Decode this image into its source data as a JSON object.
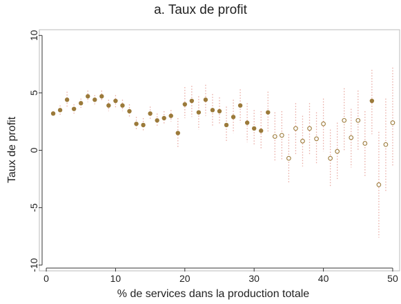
{
  "chart_data": {
    "type": "scatter",
    "title": "a. Taux de profit",
    "xlabel": "% de services dans la production totale",
    "ylabel": "Taux de profit",
    "xlim": [
      -1,
      51
    ],
    "ylim": [
      -10.5,
      10.5
    ],
    "xticks": [
      0,
      10,
      20,
      30,
      40,
      50
    ],
    "yticks": [
      -10,
      -5,
      0,
      5,
      10
    ],
    "grid": false,
    "colors": {
      "point": "#9b7a3a",
      "errorbar": "#e8a8a0",
      "axis": "#333333",
      "frame": "#bbbbbb"
    },
    "series": [
      {
        "style": "filled",
        "points": [
          {
            "x": 1,
            "y": 3.2,
            "lo": 3.0,
            "hi": 3.4
          },
          {
            "x": 2,
            "y": 3.5,
            "lo": 3.1,
            "hi": 3.9
          },
          {
            "x": 3,
            "y": 4.4,
            "lo": 3.7,
            "hi": 5.1
          },
          {
            "x": 4,
            "y": 3.6,
            "lo": 3.2,
            "hi": 4.0
          },
          {
            "x": 5,
            "y": 4.1,
            "lo": 3.7,
            "hi": 4.5
          },
          {
            "x": 6,
            "y": 4.7,
            "lo": 4.2,
            "hi": 5.2
          },
          {
            "x": 7,
            "y": 4.4,
            "lo": 4.0,
            "hi": 4.8
          },
          {
            "x": 8,
            "y": 4.7,
            "lo": 4.3,
            "hi": 5.2
          },
          {
            "x": 9,
            "y": 3.9,
            "lo": 3.4,
            "hi": 4.4
          },
          {
            "x": 10,
            "y": 4.3,
            "lo": 3.6,
            "hi": 4.8
          },
          {
            "x": 11,
            "y": 3.9,
            "lo": 3.4,
            "hi": 4.4
          },
          {
            "x": 12,
            "y": 3.4,
            "lo": 2.8,
            "hi": 4.0
          },
          {
            "x": 13,
            "y": 2.3,
            "lo": 1.7,
            "hi": 2.9
          },
          {
            "x": 14,
            "y": 2.2,
            "lo": 1.6,
            "hi": 2.8
          },
          {
            "x": 15,
            "y": 3.2,
            "lo": 2.6,
            "hi": 3.8
          },
          {
            "x": 16,
            "y": 2.6,
            "lo": 2.0,
            "hi": 3.2
          },
          {
            "x": 17,
            "y": 2.8,
            "lo": 2.2,
            "hi": 3.4
          },
          {
            "x": 18,
            "y": 3.0,
            "lo": 2.5,
            "hi": 3.5
          },
          {
            "x": 19,
            "y": 1.5,
            "lo": 0.2,
            "hi": 2.8
          },
          {
            "x": 20,
            "y": 4.0,
            "lo": 2.8,
            "hi": 5.5
          },
          {
            "x": 21,
            "y": 4.3,
            "lo": 2.9,
            "hi": 5.6
          },
          {
            "x": 22,
            "y": 3.3,
            "lo": 1.8,
            "hi": 4.7
          },
          {
            "x": 23,
            "y": 4.4,
            "lo": 3.0,
            "hi": 5.7
          },
          {
            "x": 24,
            "y": 3.5,
            "lo": 2.1,
            "hi": 4.9
          },
          {
            "x": 25,
            "y": 3.4,
            "lo": 2.2,
            "hi": 4.6
          },
          {
            "x": 26,
            "y": 2.2,
            "lo": 0.8,
            "hi": 3.8
          },
          {
            "x": 27,
            "y": 2.9,
            "lo": 1.5,
            "hi": 4.4
          },
          {
            "x": 28,
            "y": 3.9,
            "lo": 2.4,
            "hi": 5.3
          },
          {
            "x": 29,
            "y": 2.4,
            "lo": 0.7,
            "hi": 4.1
          },
          {
            "x": 30,
            "y": 1.9,
            "lo": 0.4,
            "hi": 3.5
          },
          {
            "x": 31,
            "y": 1.7,
            "lo": 0.1,
            "hi": 3.4
          },
          {
            "x": 32,
            "y": 3.3,
            "lo": 1.5,
            "hi": 5.1
          },
          {
            "x": 47,
            "y": 4.3,
            "lo": 1.4,
            "hi": 7.0
          }
        ]
      },
      {
        "style": "hollow",
        "points": [
          {
            "x": 33,
            "y": 1.2,
            "lo": -0.9,
            "hi": 3.3
          },
          {
            "x": 34,
            "y": 1.3,
            "lo": -0.8,
            "hi": 3.4
          },
          {
            "x": 35,
            "y": -0.7,
            "lo": -2.9,
            "hi": 1.4
          },
          {
            "x": 36,
            "y": 1.9,
            "lo": -0.4,
            "hi": 4.1
          },
          {
            "x": 37,
            "y": 0.8,
            "lo": -1.4,
            "hi": 3.0
          },
          {
            "x": 38,
            "y": 1.9,
            "lo": -0.4,
            "hi": 4.1
          },
          {
            "x": 39,
            "y": 1.0,
            "lo": -1.2,
            "hi": 3.3
          },
          {
            "x": 40,
            "y": 2.3,
            "lo": -0.1,
            "hi": 4.5
          },
          {
            "x": 41,
            "y": -0.7,
            "lo": -3.2,
            "hi": 1.8
          },
          {
            "x": 42,
            "y": -0.1,
            "lo": -2.5,
            "hi": 2.4
          },
          {
            "x": 43,
            "y": 2.6,
            "lo": 0.0,
            "hi": 5.4
          },
          {
            "x": 44,
            "y": 1.1,
            "lo": -1.5,
            "hi": 3.6
          },
          {
            "x": 45,
            "y": 2.6,
            "lo": 0.0,
            "hi": 5.2
          },
          {
            "x": 46,
            "y": 0.6,
            "lo": -2.3,
            "hi": 3.4
          },
          {
            "x": 48,
            "y": -3.0,
            "lo": -7.6,
            "hi": 1.6
          },
          {
            "x": 49,
            "y": 0.5,
            "lo": -3.6,
            "hi": 4.5
          },
          {
            "x": 50,
            "y": 2.4,
            "lo": -1.4,
            "hi": 7.2
          }
        ]
      }
    ]
  }
}
